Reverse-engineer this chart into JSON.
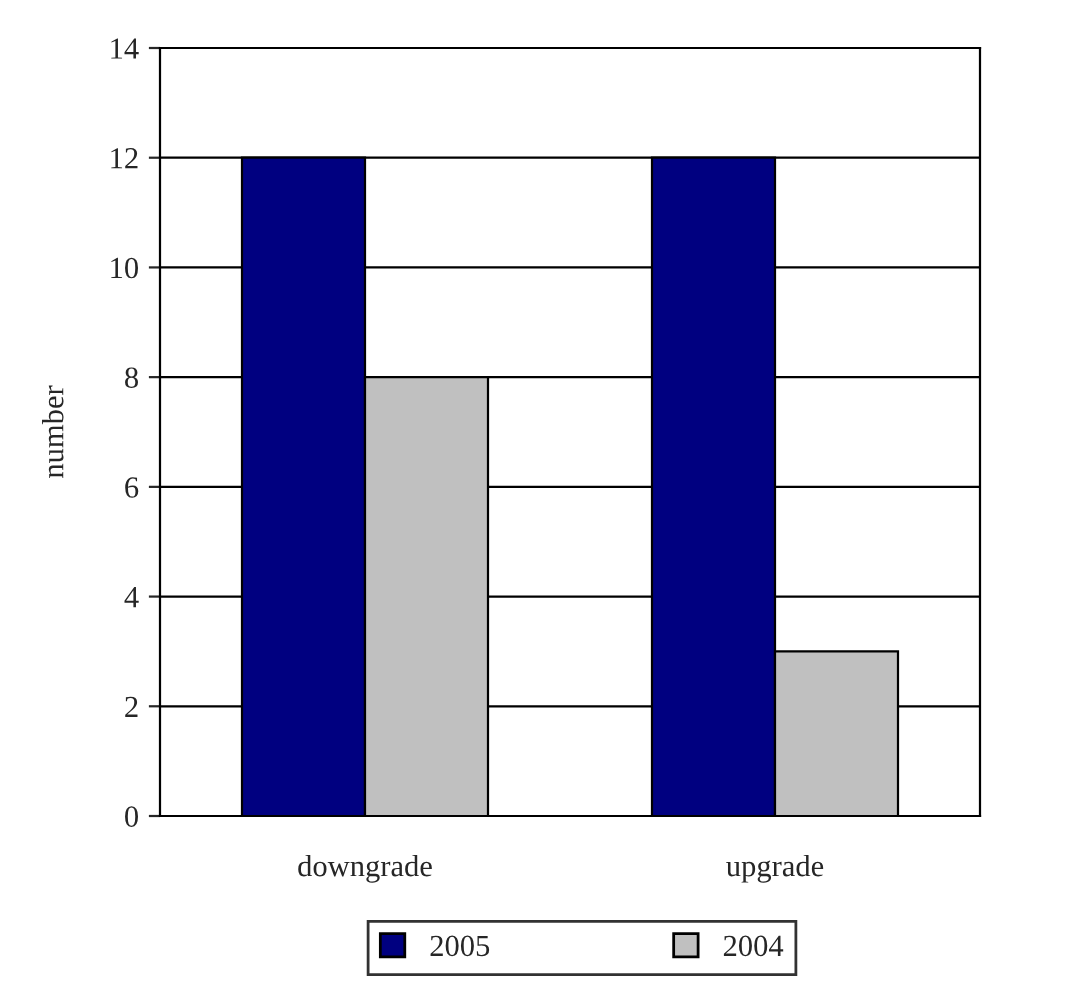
{
  "chart_data": {
    "type": "bar",
    "ylabel": "number",
    "categories": [
      "downgrade",
      "upgrade"
    ],
    "series": [
      {
        "name": "2005",
        "color": "#000080",
        "values": [
          12,
          12
        ]
      },
      {
        "name": "2004",
        "color": "#c0c0c0",
        "values": [
          8,
          3
        ]
      }
    ],
    "ylim": [
      0,
      14
    ],
    "yticks": [
      0,
      2,
      4,
      6,
      8,
      10,
      12,
      14
    ],
    "grid": "y",
    "legend": "bottom"
  }
}
